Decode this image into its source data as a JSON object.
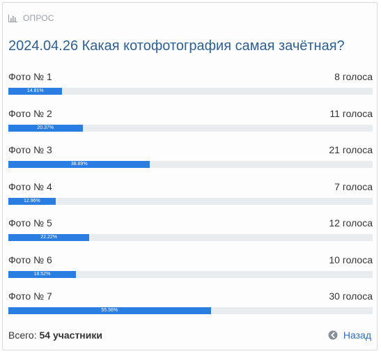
{
  "header": {
    "label": "ОПРОС",
    "icon": "bar-chart-icon"
  },
  "poll": {
    "title": "2024.04.26 Какая котофотография самая зачётная?",
    "items": [
      {
        "label": "Фото № 1",
        "votes": "8 голоса",
        "percent_text": "14.81%",
        "percent": 14.81
      },
      {
        "label": "Фото № 2",
        "votes": "11 голоса",
        "percent_text": "20.37%",
        "percent": 20.37
      },
      {
        "label": "Фото № 3",
        "votes": "21 голоса",
        "percent_text": "38.89%",
        "percent": 38.89
      },
      {
        "label": "Фото № 4",
        "votes": "7 голоса",
        "percent_text": "12.96%",
        "percent": 12.96
      },
      {
        "label": "Фото № 5",
        "votes": "12 голоса",
        "percent_text": "22.22%",
        "percent": 22.22
      },
      {
        "label": "Фото № 6",
        "votes": "10 голоса",
        "percent_text": "18.52%",
        "percent": 18.52
      },
      {
        "label": "Фото № 7",
        "votes": "30 голоса",
        "percent_text": "55.56%",
        "percent": 55.56
      }
    ]
  },
  "footer": {
    "total_label": "Всего:",
    "total_value": "54 участники",
    "back_label": "Назад",
    "back_icon": "arrow-left-circle-icon"
  },
  "colors": {
    "title": "#2f5f8f",
    "bar_fill": "#2a7de1",
    "bar_track": "#e9ecef",
    "link": "#2f6fb5"
  }
}
